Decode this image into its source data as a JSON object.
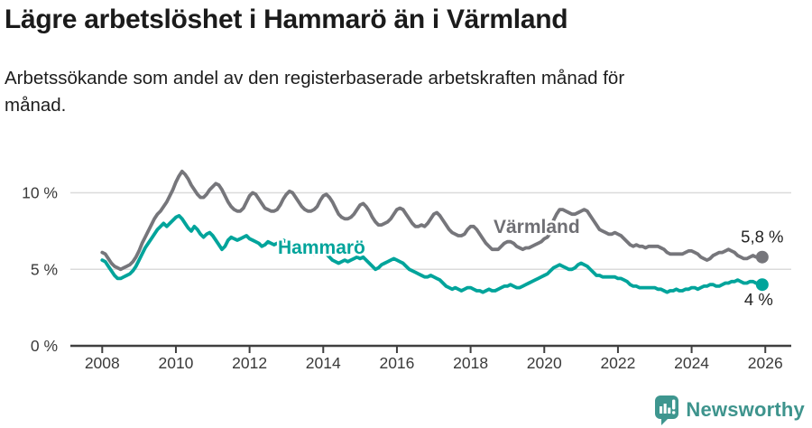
{
  "chart_data": {
    "type": "line",
    "title": "Lägre arbetslöshet i Hammarö än i Värmland",
    "subtitle_lines": [
      "Arbetssökande som andel av den registerbaserade arbetskraften månad för",
      "månad."
    ],
    "unit": "%",
    "x_interval": "monthly",
    "x_start": {
      "year": 2008,
      "month": 1
    },
    "x_end": {
      "year": 2025,
      "month": 12
    },
    "x_tick_years": [
      "2008",
      "2010",
      "2012",
      "2014",
      "2016",
      "2018",
      "2020",
      "2022",
      "2024",
      "2026"
    ],
    "y_ticks": [
      {
        "value": 0,
        "label": "0 %"
      },
      {
        "value": 5,
        "label": "5 %"
      },
      {
        "value": 10,
        "label": "10 %"
      }
    ],
    "ylim": [
      0,
      12
    ],
    "grid": "horizontal",
    "legend_position": "inline-labels",
    "series": [
      {
        "key": "varmland",
        "name": "Värmland",
        "color": "#76767b",
        "label_color": "#6f6f74",
        "end_value": 5.8,
        "end_label": "5,8 %",
        "values": [
          6.1,
          6.0,
          5.7,
          5.4,
          5.2,
          5.1,
          5.0,
          5.1,
          5.2,
          5.3,
          5.5,
          5.8,
          6.2,
          6.7,
          7.1,
          7.5,
          7.9,
          8.3,
          8.6,
          8.8,
          9.1,
          9.4,
          9.8,
          10.2,
          10.7,
          11.1,
          11.4,
          11.2,
          10.9,
          10.5,
          10.2,
          9.9,
          9.7,
          9.7,
          9.9,
          10.2,
          10.4,
          10.6,
          10.5,
          10.2,
          9.8,
          9.4,
          9.1,
          8.9,
          8.8,
          8.8,
          9.0,
          9.4,
          9.8,
          10.0,
          9.9,
          9.6,
          9.3,
          9.0,
          8.9,
          8.8,
          8.8,
          8.9,
          9.2,
          9.6,
          9.9,
          10.1,
          10.0,
          9.7,
          9.4,
          9.1,
          8.9,
          8.8,
          8.8,
          8.9,
          9.1,
          9.5,
          9.8,
          9.9,
          9.7,
          9.4,
          9.0,
          8.6,
          8.4,
          8.3,
          8.3,
          8.4,
          8.6,
          8.9,
          9.2,
          9.3,
          9.1,
          8.8,
          8.4,
          8.1,
          7.9,
          7.9,
          8.0,
          8.1,
          8.3,
          8.6,
          8.9,
          9.0,
          8.9,
          8.6,
          8.3,
          8.0,
          7.8,
          7.8,
          7.9,
          7.8,
          8.0,
          8.3,
          8.6,
          8.7,
          8.5,
          8.2,
          7.9,
          7.6,
          7.4,
          7.3,
          7.2,
          7.2,
          7.3,
          7.6,
          7.8,
          7.8,
          7.6,
          7.3,
          7.0,
          6.7,
          6.5,
          6.3,
          6.3,
          6.3,
          6.5,
          6.7,
          6.8,
          6.8,
          6.7,
          6.5,
          6.4,
          6.3,
          6.4,
          6.4,
          6.5,
          6.6,
          6.7,
          6.8,
          7.0,
          7.1,
          7.4,
          8.2,
          8.6,
          8.9,
          8.9,
          8.8,
          8.7,
          8.6,
          8.6,
          8.7,
          8.8,
          8.9,
          8.8,
          8.5,
          8.2,
          7.9,
          7.6,
          7.5,
          7.4,
          7.3,
          7.3,
          7.4,
          7.3,
          7.2,
          7.0,
          6.8,
          6.6,
          6.5,
          6.6,
          6.5,
          6.5,
          6.4,
          6.5,
          6.5,
          6.5,
          6.5,
          6.4,
          6.3,
          6.1,
          6.0,
          6.0,
          6.0,
          6.0,
          6.0,
          6.1,
          6.2,
          6.2,
          6.1,
          6.0,
          5.8,
          5.7,
          5.6,
          5.7,
          5.9,
          6.0,
          6.1,
          6.1,
          6.2,
          6.3,
          6.2,
          6.1,
          5.9,
          5.8,
          5.7,
          5.7,
          5.8,
          5.9,
          5.8,
          5.8,
          5.8
        ]
      },
      {
        "key": "hammaro",
        "name": "Hammarö",
        "color": "#00a49b",
        "label_color": "#00a49b",
        "end_value": 4.0,
        "end_label": "4 %",
        "values": [
          5.6,
          5.5,
          5.2,
          4.9,
          4.6,
          4.4,
          4.4,
          4.5,
          4.6,
          4.7,
          4.9,
          5.2,
          5.6,
          6.0,
          6.4,
          6.7,
          7.0,
          7.3,
          7.6,
          7.8,
          8.0,
          7.8,
          8.0,
          8.2,
          8.4,
          8.5,
          8.3,
          8.0,
          7.7,
          7.5,
          7.8,
          7.6,
          7.3,
          7.1,
          7.3,
          7.4,
          7.2,
          6.9,
          6.6,
          6.3,
          6.5,
          6.9,
          7.1,
          7.0,
          6.9,
          7.0,
          7.1,
          7.2,
          7.0,
          6.9,
          6.8,
          6.7,
          6.5,
          6.6,
          6.8,
          6.7,
          6.6,
          6.7,
          6.8,
          6.9,
          6.8,
          6.7,
          6.5,
          6.3,
          6.1,
          6.0,
          6.1,
          6.2,
          6.1,
          6.0,
          6.1,
          6.2,
          6.1,
          6.0,
          5.8,
          5.6,
          5.5,
          5.4,
          5.5,
          5.6,
          5.5,
          5.6,
          5.7,
          5.8,
          5.7,
          5.8,
          5.6,
          5.4,
          5.2,
          5.0,
          5.1,
          5.3,
          5.4,
          5.5,
          5.6,
          5.7,
          5.6,
          5.5,
          5.4,
          5.2,
          5.0,
          4.9,
          4.8,
          4.7,
          4.6,
          4.5,
          4.5,
          4.6,
          4.5,
          4.4,
          4.3,
          4.1,
          3.9,
          3.8,
          3.7,
          3.8,
          3.7,
          3.6,
          3.7,
          3.8,
          3.8,
          3.7,
          3.6,
          3.6,
          3.5,
          3.6,
          3.7,
          3.6,
          3.6,
          3.7,
          3.8,
          3.9,
          3.9,
          4.0,
          3.9,
          3.8,
          3.8,
          3.9,
          4.0,
          4.1,
          4.2,
          4.3,
          4.4,
          4.5,
          4.6,
          4.7,
          4.9,
          5.1,
          5.2,
          5.3,
          5.2,
          5.1,
          5.0,
          5.0,
          5.1,
          5.3,
          5.4,
          5.3,
          5.2,
          5.0,
          4.8,
          4.6,
          4.6,
          4.5,
          4.5,
          4.5,
          4.5,
          4.5,
          4.4,
          4.4,
          4.3,
          4.2,
          4.0,
          3.9,
          3.9,
          3.8,
          3.8,
          3.8,
          3.8,
          3.8,
          3.8,
          3.7,
          3.7,
          3.6,
          3.5,
          3.6,
          3.6,
          3.7,
          3.6,
          3.6,
          3.7,
          3.7,
          3.8,
          3.8,
          3.7,
          3.8,
          3.9,
          3.9,
          4.0,
          4.0,
          3.9,
          3.9,
          4.0,
          4.1,
          4.1,
          4.2,
          4.2,
          4.3,
          4.2,
          4.1,
          4.1,
          4.2,
          4.2,
          4.1,
          4.0,
          4.0
        ]
      }
    ],
    "colors": {
      "accent_teal": "#00a49b",
      "series_gray": "#76767b",
      "gridline": "#dbdbdb",
      "axis": "#3f3f3f",
      "text_dark": "#1b1b1b"
    }
  },
  "footer": {
    "brand": "Newsworthy"
  }
}
